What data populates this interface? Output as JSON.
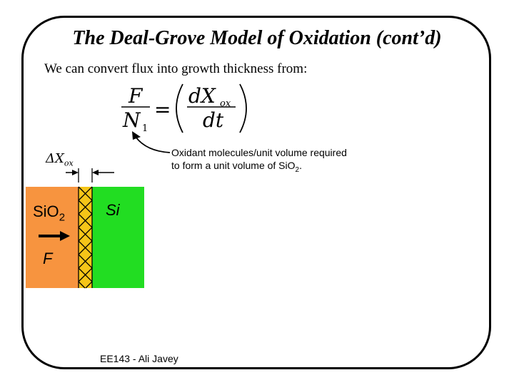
{
  "title": "The Deal-Grove Model of Oxidation (cont’d)",
  "subtitle": "We can convert flux into growth thickness from:",
  "equation": {
    "lhs_numerator": "F",
    "lhs_denominator": "N",
    "lhs_denominator_sub": "1",
    "equals": "=",
    "rhs_numerator": "dX",
    "rhs_numerator_sub": "ox",
    "rhs_denominator": "dt"
  },
  "note": {
    "line1": "Oxidant molecules/unit volume required",
    "line2_prefix": "to form a unit volume of Si",
    "line2_sub": "2",
    "line2_prefix_o": "O",
    "line2_suffix": "."
  },
  "diagram": {
    "delta_label": "ΔX",
    "delta_label_sub": "ox",
    "oxide_label": "SiO",
    "oxide_label_sub": "2",
    "silicon_label": "Si",
    "flux_label": "F",
    "colors": {
      "oxide": "#f7943f",
      "silicon": "#22dd22",
      "growth_layer": "#f5c518"
    }
  },
  "footer": "EE143 - Ali Javey"
}
